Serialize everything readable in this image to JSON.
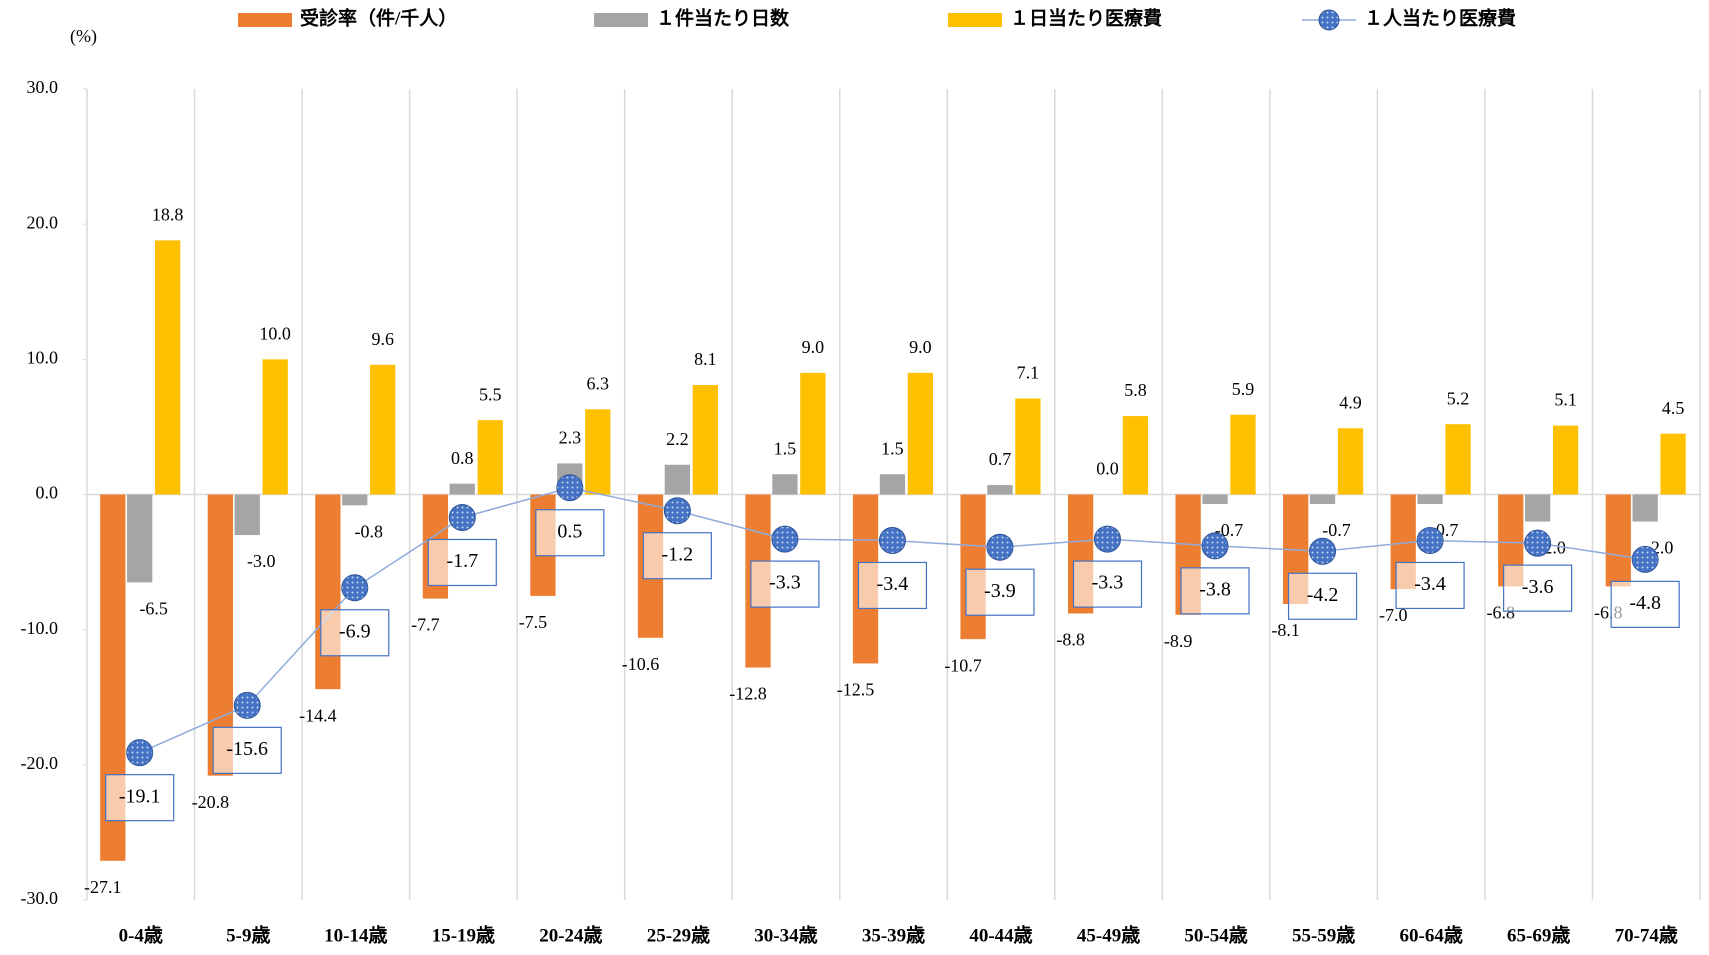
{
  "chart_data": {
    "type": "bar",
    "ylabel": "(%)",
    "categories": [
      "0-4歳",
      "5-9歳",
      "10-14歳",
      "15-19歳",
      "20-24歳",
      "25-29歳",
      "30-34歳",
      "35-39歳",
      "40-44歳",
      "45-49歳",
      "50-54歳",
      "55-59歳",
      "60-64歳",
      "65-69歳",
      "70-74歳"
    ],
    "series": [
      {
        "name": "受診率（件/千人）",
        "color": "#ed7d31",
        "type": "bar",
        "values": [
          -27.1,
          -20.8,
          -14.4,
          -7.7,
          -7.5,
          -10.6,
          -12.8,
          -12.5,
          -10.7,
          -8.8,
          -8.9,
          -8.1,
          -7.0,
          -6.8,
          -6.8
        ],
        "value_labels": [
          "-27.1",
          "-20.8",
          "-14.4",
          "-7.7",
          "-7.5",
          "-10.6",
          "-12.8",
          "-12.5",
          "-10.7",
          "-8.8",
          "-8.9",
          "-8.1",
          "-7.0",
          "-6.8",
          "-6.8"
        ]
      },
      {
        "name": "１件当たり日数",
        "color": "#a5a5a5",
        "type": "bar",
        "values": [
          -6.5,
          -3.0,
          -0.8,
          0.8,
          2.3,
          2.2,
          1.5,
          1.5,
          0.7,
          0.0,
          -0.7,
          -0.7,
          -0.7,
          -2.0,
          -2.0
        ],
        "value_labels": [
          "-6.5",
          "-3.0",
          "-0.8",
          "0.8",
          "2.3",
          "2.2",
          "1.5",
          "1.5",
          "0.7",
          "0.0",
          "-0.7",
          "-0.7",
          "-0.7",
          "-2.0",
          "-2.0"
        ]
      },
      {
        "name": "１日当たり医療費",
        "color": "#ffc000",
        "type": "bar",
        "values": [
          18.8,
          10.0,
          9.6,
          5.5,
          6.3,
          8.1,
          9.0,
          9.0,
          7.1,
          5.8,
          5.9,
          4.9,
          5.2,
          5.1,
          4.5
        ],
        "value_labels": [
          "18.8",
          "10.0",
          "9.6",
          "5.5",
          "6.3",
          "8.1",
          "9.0",
          "9.0",
          "7.1",
          "5.8",
          "5.9",
          "4.9",
          "5.2",
          "5.1",
          "4.5"
        ]
      },
      {
        "name": "１人当たり医療費",
        "color": "#4472c4",
        "type": "line",
        "values": [
          -19.1,
          -15.6,
          -6.9,
          -1.7,
          0.5,
          -1.2,
          -3.3,
          -3.4,
          -3.9,
          -3.3,
          -3.8,
          -4.2,
          -3.4,
          -3.6,
          -4.8
        ],
        "value_labels": [
          "-19.1",
          "-15.6",
          "-6.9",
          "-1.7",
          "0.5",
          "-1.2",
          "-3.3",
          "-3.4",
          "-3.9",
          "-3.3",
          "-3.8",
          "-4.2",
          "-3.4",
          "-3.6",
          "-4.8"
        ]
      }
    ],
    "ylim": [
      -30,
      30
    ],
    "yticks": [
      {
        "value": -30,
        "label": "-30.0"
      },
      {
        "value": -20,
        "label": "-20.0"
      },
      {
        "value": -10,
        "label": "-10.0"
      },
      {
        "value": 0,
        "label": "0.0"
      },
      {
        "value": 10,
        "label": "10.0"
      },
      {
        "value": 20,
        "label": "20.0"
      },
      {
        "value": 30,
        "label": "30.0"
      }
    ]
  }
}
